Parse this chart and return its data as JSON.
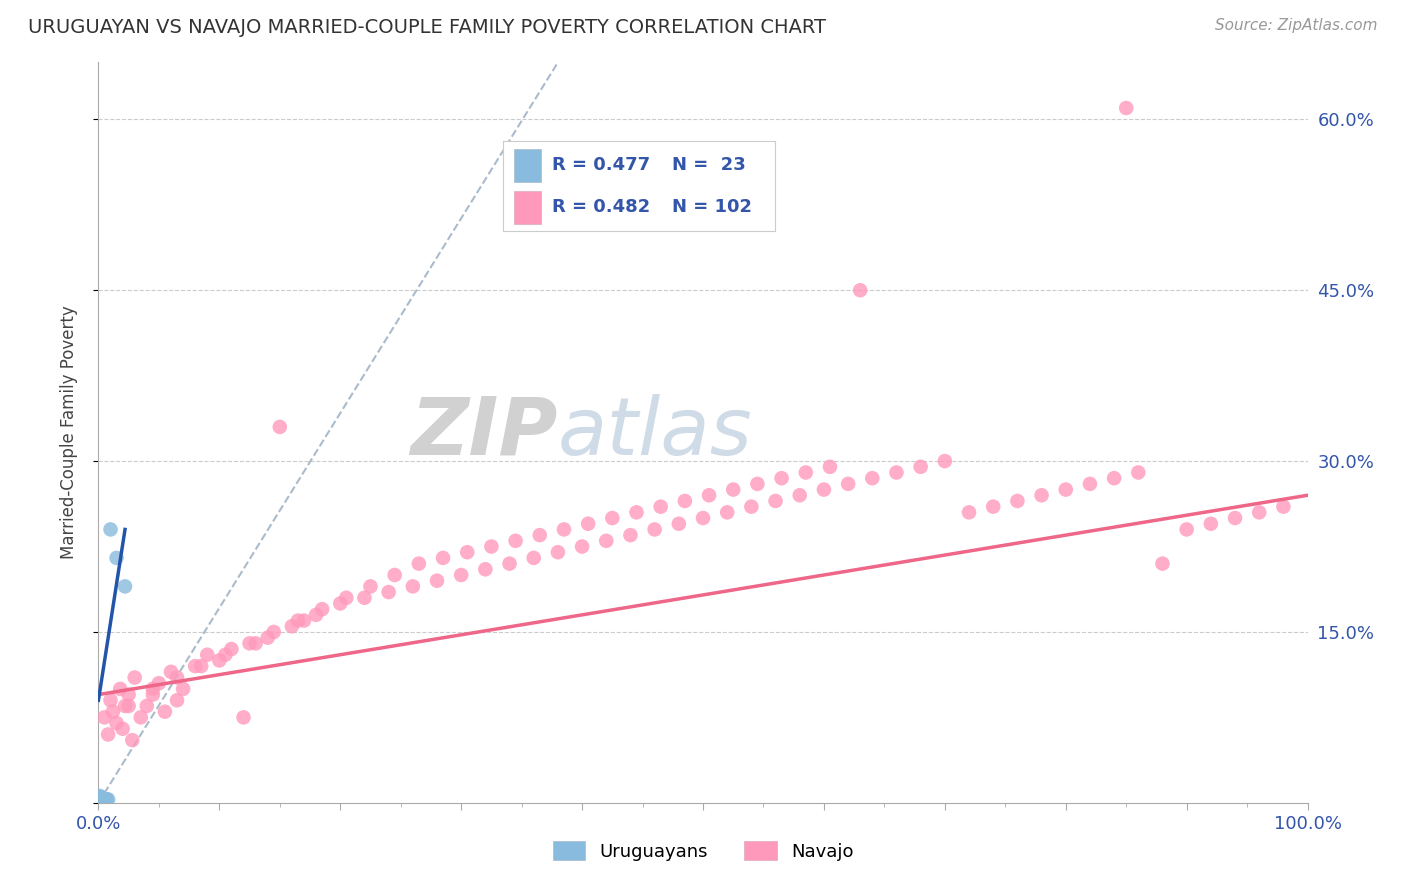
{
  "title": "URUGUAYAN VS NAVAJO MARRIED-COUPLE FAMILY POVERTY CORRELATION CHART",
  "source": "Source: ZipAtlas.com",
  "ylabel": "Married-Couple Family Poverty",
  "xlim": [
    0.0,
    1.0
  ],
  "ylim": [
    0.0,
    0.65
  ],
  "legend_blue_r": "R = 0.477",
  "legend_blue_n": "N =  23",
  "legend_pink_r": "R = 0.482",
  "legend_pink_n": "N = 102",
  "blue_color": "#88BBDD",
  "pink_color": "#FF99BB",
  "blue_line_color": "#2255AA",
  "pink_line_color": "#EE6688",
  "diagonal_color": "#AABBCC",
  "grid_color": "#CCCCCC",
  "uruguayan_x": [
    0.001,
    0.001,
    0.001,
    0.001,
    0.001,
    0.002,
    0.002,
    0.002,
    0.002,
    0.003,
    0.003,
    0.003,
    0.004,
    0.004,
    0.005,
    0.005,
    0.006,
    0.006,
    0.007,
    0.008,
    0.01,
    0.015,
    0.022
  ],
  "uruguayan_y": [
    0.002,
    0.003,
    0.004,
    0.005,
    0.006,
    0.002,
    0.003,
    0.004,
    0.005,
    0.002,
    0.003,
    0.004,
    0.002,
    0.003,
    0.002,
    0.003,
    0.002,
    0.003,
    0.003,
    0.003,
    0.24,
    0.215,
    0.19
  ],
  "navajo_x": [
    0.005,
    0.008,
    0.01,
    0.012,
    0.015,
    0.018,
    0.02,
    0.022,
    0.025,
    0.028,
    0.03,
    0.035,
    0.04,
    0.045,
    0.05,
    0.055,
    0.06,
    0.065,
    0.07,
    0.08,
    0.09,
    0.1,
    0.11,
    0.12,
    0.13,
    0.14,
    0.15,
    0.16,
    0.17,
    0.18,
    0.2,
    0.22,
    0.24,
    0.26,
    0.28,
    0.3,
    0.32,
    0.34,
    0.36,
    0.38,
    0.4,
    0.42,
    0.44,
    0.46,
    0.48,
    0.5,
    0.52,
    0.54,
    0.56,
    0.58,
    0.6,
    0.62,
    0.64,
    0.66,
    0.68,
    0.7,
    0.72,
    0.74,
    0.76,
    0.78,
    0.8,
    0.82,
    0.84,
    0.86,
    0.88,
    0.9,
    0.92,
    0.94,
    0.96,
    0.98,
    0.025,
    0.045,
    0.065,
    0.085,
    0.105,
    0.125,
    0.145,
    0.165,
    0.185,
    0.205,
    0.225,
    0.245,
    0.265,
    0.285,
    0.305,
    0.325,
    0.345,
    0.365,
    0.385,
    0.405,
    0.425,
    0.445,
    0.465,
    0.485,
    0.505,
    0.525,
    0.545,
    0.565,
    0.585,
    0.605,
    0.63,
    0.85
  ],
  "navajo_y": [
    0.075,
    0.06,
    0.09,
    0.08,
    0.07,
    0.1,
    0.065,
    0.085,
    0.095,
    0.055,
    0.11,
    0.075,
    0.085,
    0.095,
    0.105,
    0.08,
    0.115,
    0.09,
    0.1,
    0.12,
    0.13,
    0.125,
    0.135,
    0.075,
    0.14,
    0.145,
    0.33,
    0.155,
    0.16,
    0.165,
    0.175,
    0.18,
    0.185,
    0.19,
    0.195,
    0.2,
    0.205,
    0.21,
    0.215,
    0.22,
    0.225,
    0.23,
    0.235,
    0.24,
    0.245,
    0.25,
    0.255,
    0.26,
    0.265,
    0.27,
    0.275,
    0.28,
    0.285,
    0.29,
    0.295,
    0.3,
    0.255,
    0.26,
    0.265,
    0.27,
    0.275,
    0.28,
    0.285,
    0.29,
    0.21,
    0.24,
    0.245,
    0.25,
    0.255,
    0.26,
    0.085,
    0.1,
    0.11,
    0.12,
    0.13,
    0.14,
    0.15,
    0.16,
    0.17,
    0.18,
    0.19,
    0.2,
    0.21,
    0.215,
    0.22,
    0.225,
    0.23,
    0.235,
    0.24,
    0.245,
    0.25,
    0.255,
    0.26,
    0.265,
    0.27,
    0.275,
    0.28,
    0.285,
    0.29,
    0.295,
    0.45,
    0.61
  ]
}
